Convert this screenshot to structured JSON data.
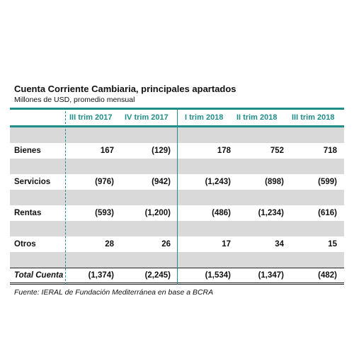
{
  "title": "Cuenta Corriente Cambiaria, principales apartados",
  "subtitle": "Millones de USD, promedio mensual",
  "columns": [
    "III trim 2017",
    "IV trim 2017",
    "I trim 2018",
    "II trim 2018",
    "III trim 2018"
  ],
  "rows": [
    {
      "label": "Bienes",
      "values": [
        "167",
        "(129)",
        "178",
        "752",
        "718"
      ]
    },
    {
      "label": "Servicios",
      "values": [
        "(976)",
        "(942)",
        "(1,243)",
        "(898)",
        "(599)"
      ]
    },
    {
      "label": "Rentas",
      "values": [
        "(593)",
        "(1,200)",
        "(486)",
        "(1,234)",
        "(616)"
      ]
    },
    {
      "label": "Otros",
      "values": [
        "28",
        "26",
        "17",
        "34",
        "15"
      ]
    }
  ],
  "total": {
    "label": "Total Cuenta",
    "values": [
      "(1,374)",
      "(2,245)",
      "(1,534)",
      "(1,347)",
      "(482)"
    ]
  },
  "source": "Fuente: IERAL de Fundación Mediterránea en base a BCRA",
  "colors": {
    "accent": "#1f8d89",
    "shade": "#d9d9d9"
  }
}
